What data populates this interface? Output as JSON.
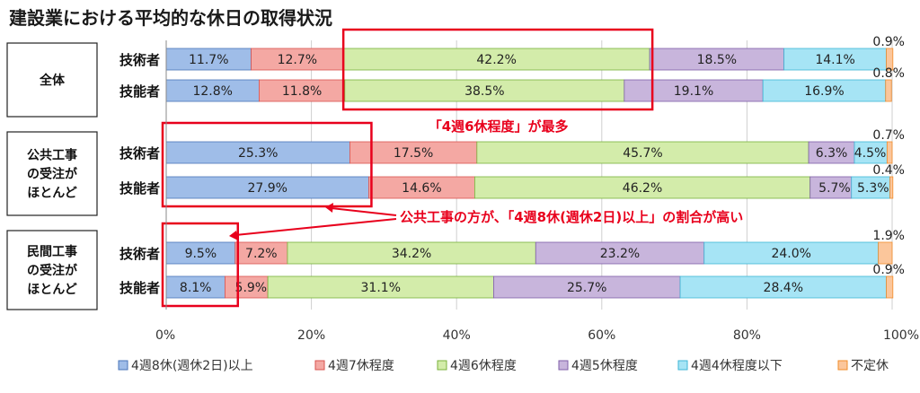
{
  "chart_data": {
    "type": "bar",
    "orientation": "horizontal",
    "stacked": "percent",
    "title": "建設業における平均的な休日の取得状況",
    "xlim": [
      0,
      100
    ],
    "xticks": [
      "0%",
      "20%",
      "40%",
      "60%",
      "80%",
      "100%"
    ],
    "legend_position": "bottom",
    "series_names": [
      "4週8休(週休2日)以上",
      "4週7休程度",
      "4週6休程度",
      "4週5休程度",
      "4週4休程度以下",
      "不定休"
    ],
    "colors": [
      "#9fbde8",
      "#f4a8a3",
      "#d3ecaa",
      "#c8b5dc",
      "#a6e4f5",
      "#fbc69b"
    ],
    "border_colors": [
      "#4a74b8",
      "#d9534f",
      "#79b23b",
      "#7f5fa8",
      "#3fb6d6",
      "#f28c2a"
    ],
    "groups": [
      {
        "label": "全体",
        "rows": [
          {
            "label": "技術者",
            "values": [
              11.7,
              12.7,
              42.2,
              18.5,
              14.1,
              0.9
            ],
            "labels": [
              "11.7%",
              "12.7%",
              "42.2%",
              "18.5%",
              "14.1%",
              "0.9%"
            ]
          },
          {
            "label": "技能者",
            "values": [
              12.8,
              11.8,
              38.5,
              19.1,
              16.9,
              0.8
            ],
            "labels": [
              "12.8%",
              "11.8%",
              "38.5%",
              "19.1%",
              "16.9%",
              "0.8%"
            ]
          }
        ]
      },
      {
        "label": "公共工事の受注がほとんど",
        "rows": [
          {
            "label": "技術者",
            "values": [
              25.3,
              17.5,
              45.7,
              6.3,
              4.5,
              0.7
            ],
            "labels": [
              "25.3%",
              "17.5%",
              "45.7%",
              "6.3%",
              "4.5%",
              "0.7%"
            ]
          },
          {
            "label": "技能者",
            "values": [
              27.9,
              14.6,
              46.2,
              5.7,
              5.3,
              0.4
            ],
            "labels": [
              "27.9%",
              "14.6%",
              "46.2%",
              "5.7%",
              "5.3%",
              "0.4%"
            ]
          }
        ]
      },
      {
        "label": "民間工事の受注がほとんど",
        "rows": [
          {
            "label": "技術者",
            "values": [
              9.5,
              7.2,
              34.2,
              23.2,
              24.0,
              1.9
            ],
            "labels": [
              "9.5%",
              "7.2%",
              "34.2%",
              "23.2%",
              "24.0%",
              "1.9%"
            ]
          },
          {
            "label": "技能者",
            "values": [
              8.1,
              5.9,
              31.1,
              25.7,
              28.4,
              0.9
            ],
            "labels": [
              "8.1%",
              "5.9%",
              "31.1%",
              "25.7%",
              "28.4%",
              "0.9%"
            ]
          }
        ]
      }
    ],
    "group_label_lines": [
      [
        "全体"
      ],
      [
        "公共工事",
        "の受注が",
        "ほとんど"
      ],
      [
        "民間工事",
        "の受注が",
        "ほとんど"
      ]
    ],
    "annotations": [
      {
        "text": "「4週6休程度」が最多",
        "highlight_x": [
          24.4,
          66.6
        ],
        "highlight_rows": [
          0,
          1
        ]
      },
      {
        "text": "公共工事の方が、「4週8休(週休2日)以上」の割合が高い",
        "highlight_x": [
          0,
          27.9
        ],
        "highlight_rows": [
          2,
          3
        ]
      },
      {
        "text": "",
        "highlight_x": [
          0,
          9.5
        ],
        "highlight_rows": [
          4,
          5
        ]
      }
    ],
    "annotation_color": "#e8001c"
  }
}
